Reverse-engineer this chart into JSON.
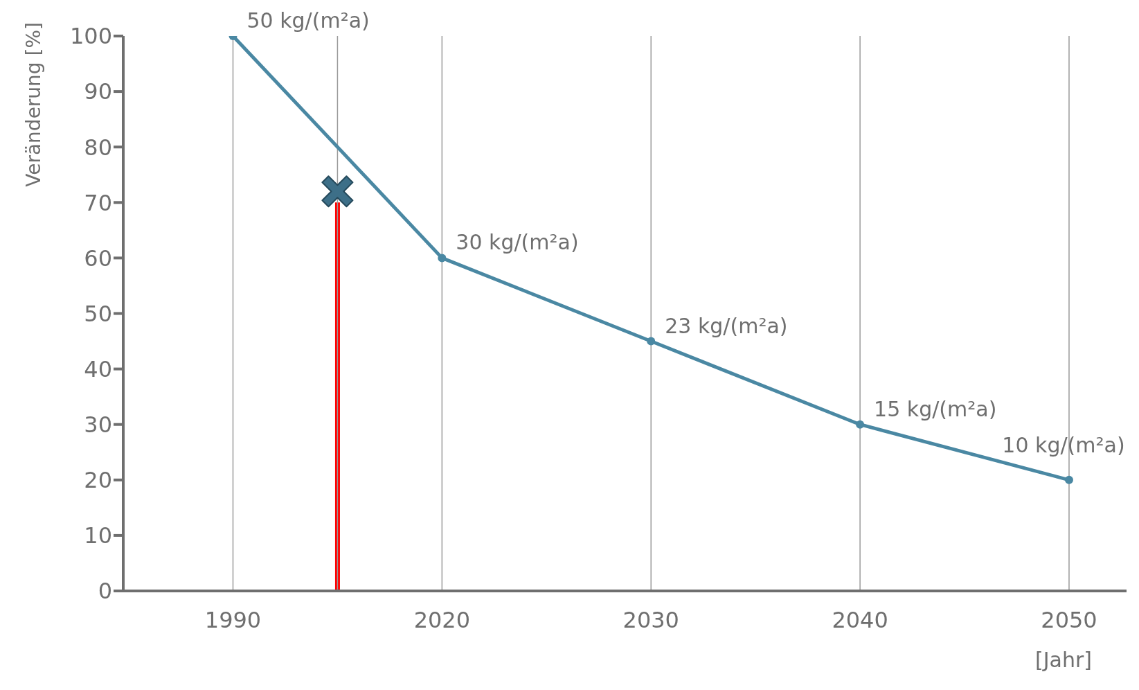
{
  "chart_data": {
    "type": "line",
    "ylabel": "Veränderung [%]",
    "xlabel": "[Jahr]",
    "categories": [
      "1990",
      null,
      "2020",
      null,
      "2030",
      null,
      "2040",
      null,
      "2050"
    ],
    "series": [
      {
        "color": "#4a88a3",
        "values": [
          100,
          null,
          60,
          null,
          45,
          null,
          30,
          null,
          20
        ],
        "marker": "circle"
      },
      {
        "type": "bar",
        "color": "#ff0000",
        "values": [
          null,
          70,
          null,
          null,
          null,
          null,
          null,
          null,
          null
        ]
      },
      {
        "type": "scatter",
        "color": "#3d6f88",
        "values": [
          null,
          72,
          null,
          null,
          null,
          null,
          null,
          null,
          null
        ],
        "marker": "cross"
      }
    ],
    "annotations": [
      {
        "text": "50 kg/(m²a)",
        "x": "1990",
        "y": 100
      },
      {
        "text": "30 kg/(m²a)",
        "x": "2020",
        "y": 60
      },
      {
        "text": "23 kg/(m²a)",
        "x": "2030",
        "y": 45
      },
      {
        "text": "15 kg/(m²a)",
        "x": "2040",
        "y": 30
      },
      {
        "text": "10 kg/(m²a)",
        "x": "2050",
        "y": 20
      }
    ],
    "ylim": [
      0,
      100
    ],
    "yticks": [
      0,
      10,
      20,
      30,
      40,
      50,
      60,
      70,
      80,
      90,
      100
    ],
    "grid": "x"
  }
}
